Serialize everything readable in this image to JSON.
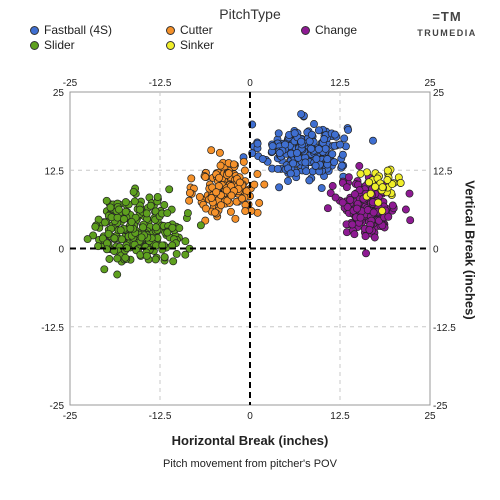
{
  "legend": {
    "title": "PitchType",
    "items": [
      {
        "label": "Fastball (4S)",
        "color": "#3f6fd1"
      },
      {
        "label": "Cutter",
        "color": "#f5912a"
      },
      {
        "label": "Change",
        "color": "#8e1a93"
      },
      {
        "label": "Slider",
        "color": "#5ea01e"
      },
      {
        "label": "Sinker",
        "color": "#f0ee2a"
      }
    ]
  },
  "brand": {
    "mark": "=TM",
    "text": "TRUMEDIA"
  },
  "chart_data": {
    "type": "scatter",
    "title": "",
    "xlabel": "Horizontal Break (inches)",
    "ylabel": "Vertical Break (inches)",
    "caption": "Pitch movement from pitcher's POV",
    "xlim": [
      -25,
      25
    ],
    "ylim": [
      -25,
      25
    ],
    "xticks": [
      "-25",
      "-12.5",
      "0",
      "12.5",
      "25"
    ],
    "yticks": [
      "25",
      "12.5",
      "0",
      "-12.5",
      "-25"
    ],
    "grid": true,
    "legend_position": "top",
    "series": [
      {
        "name": "Fastball (4S)",
        "color": "#3f6fd1",
        "cluster": {
          "x_center": 7.5,
          "y_center": 15.5,
          "x_spread": 3.5,
          "y_spread": 2.6,
          "count": 230
        }
      },
      {
        "name": "Cutter",
        "color": "#f5912a",
        "cluster": {
          "x_center": -3.2,
          "y_center": 9.5,
          "x_spread": 2.4,
          "y_spread": 2.6,
          "count": 160
        }
      },
      {
        "name": "Change",
        "color": "#8e1a93",
        "cluster": {
          "x_center": 16.5,
          "y_center": 6.5,
          "x_spread": 2.3,
          "y_spread": 2.6,
          "count": 200
        }
      },
      {
        "name": "Slider",
        "color": "#5ea01e",
        "cluster": {
          "x_center": -15.5,
          "y_center": 3.0,
          "x_spread": 3.6,
          "y_spread": 3.0,
          "count": 250
        }
      },
      {
        "name": "Sinker",
        "color": "#f0ee2a",
        "cluster": {
          "x_center": 18.5,
          "y_center": 10.0,
          "x_spread": 1.8,
          "y_spread": 2.0,
          "count": 35
        }
      }
    ]
  }
}
